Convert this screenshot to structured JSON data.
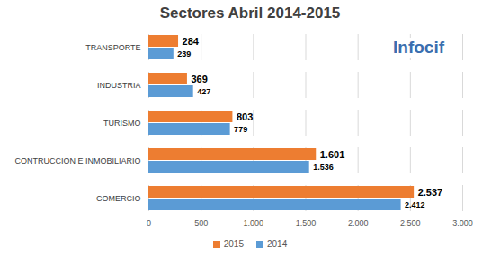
{
  "chart_data": {
    "type": "bar",
    "title": "Sectores Abril 2014-2015",
    "orientation": "horizontal",
    "categories": [
      "TRANSPORTE",
      "INDUSTRIA",
      "TURISMO",
      "CONTRUCCION E INMOBILIARIO",
      "COMERCIO"
    ],
    "series": [
      {
        "name": "2015",
        "color": "#ed7d31",
        "values": [
          284,
          369,
          803,
          1601,
          2537
        ],
        "value_labels": [
          "284",
          "369",
          "803",
          "1.601",
          "2.537"
        ]
      },
      {
        "name": "2014",
        "color": "#5b9bd5",
        "values": [
          239,
          427,
          779,
          1536,
          2412
        ],
        "value_labels": [
          "239",
          "427",
          "779",
          "1.536",
          "2.412"
        ]
      }
    ],
    "xlim": [
      0,
      3000
    ],
    "xticks": [
      0,
      500,
      {
        "value": 1000,
        "label": "1.000"
      },
      {
        "value": 1500,
        "label": "1.500"
      },
      {
        "value": 2000,
        "label": "2.000"
      },
      {
        "value": 2500,
        "label": "2.500"
      },
      {
        "value": 3000,
        "label": "3.000"
      }
    ],
    "grid": true,
    "data_labels": true,
    "legend": "bottom",
    "annotations": [
      "Infocif"
    ]
  }
}
